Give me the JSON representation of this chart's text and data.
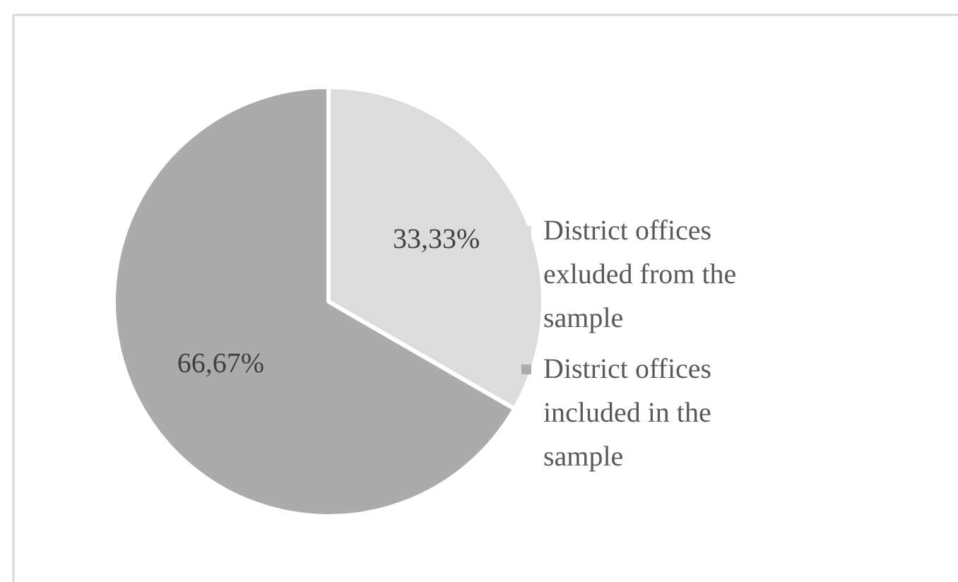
{
  "chart_data": {
    "type": "pie",
    "categories": [
      "District offices exluded from the sample",
      "District offices included in the sample"
    ],
    "values": [
      33.33,
      66.67
    ],
    "colors": [
      "#dcdcdc",
      "#ababab"
    ],
    "value_labels": [
      "33,33%",
      "66,67%"
    ],
    "legend": "right"
  }
}
